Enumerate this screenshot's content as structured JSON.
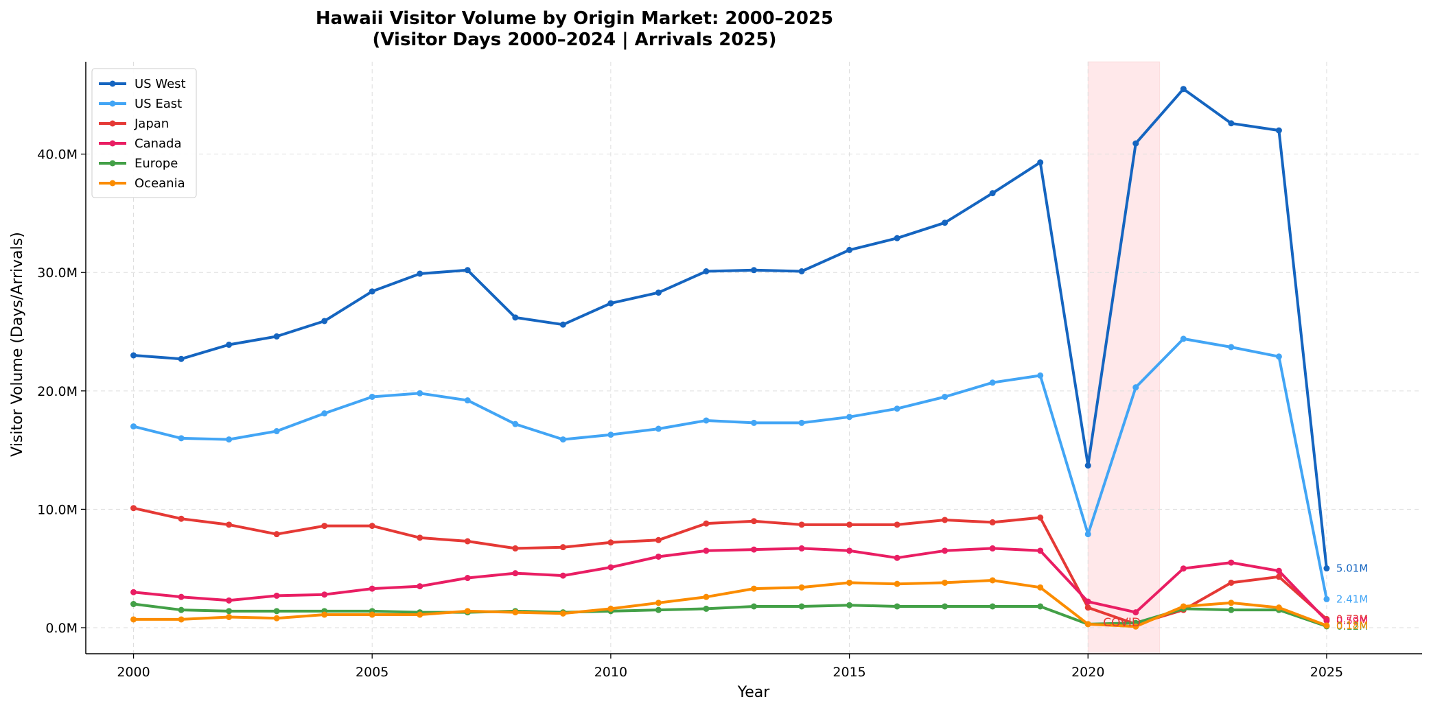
{
  "chart_data": {
    "type": "line",
    "title": "Hawaii Visitor Volume by Origin Market: 2000–2025",
    "subtitle": "(Visitor Days 2000–2024 | Arrivals 2025)",
    "xlabel": "Year",
    "ylabel": "Visitor Volume (Days/Arrivals)",
    "xlim": [
      1999,
      2027
    ],
    "ylim": [
      -2200000,
      47800000
    ],
    "x_ticks": [
      2000,
      2005,
      2010,
      2015,
      2020,
      2025
    ],
    "x_tick_labels": [
      "2000",
      "2005",
      "2010",
      "2015",
      "2020",
      "2025"
    ],
    "y_ticks": [
      0,
      10000000,
      20000000,
      30000000,
      40000000
    ],
    "y_tick_labels": [
      "0.0M",
      "10.0M",
      "20.0M",
      "30.0M",
      "40.0M"
    ],
    "grid": true,
    "legend_position": "top-left",
    "x": [
      2000,
      2001,
      2002,
      2003,
      2004,
      2005,
      2006,
      2007,
      2008,
      2009,
      2010,
      2011,
      2012,
      2013,
      2014,
      2015,
      2016,
      2017,
      2018,
      2019,
      2020,
      2021,
      2022,
      2023,
      2024,
      2025
    ],
    "series": [
      {
        "name": "US West",
        "color": "#1565c0",
        "values": [
          23000000,
          22700000,
          23900000,
          24600000,
          25900000,
          28400000,
          29900000,
          30200000,
          26200000,
          25600000,
          27400000,
          28300000,
          30100000,
          30200000,
          30100000,
          31900000,
          32900000,
          34200000,
          36700000,
          39300000,
          13700000,
          40900000,
          45500000,
          42600000,
          42000000,
          5010000
        ],
        "end_label": "5.01M"
      },
      {
        "name": "US East",
        "color": "#42a5f5",
        "values": [
          17000000,
          16000000,
          15900000,
          16600000,
          18100000,
          19500000,
          19800000,
          19200000,
          17200000,
          15900000,
          16300000,
          16800000,
          17500000,
          17300000,
          17300000,
          17800000,
          18500000,
          19500000,
          20700000,
          21300000,
          7900000,
          20300000,
          24400000,
          23700000,
          22900000,
          2410000
        ],
        "end_label": "2.41M"
      },
      {
        "name": "Japan",
        "color": "#e53935",
        "values": [
          10100000,
          9200000,
          8700000,
          7900000,
          8600000,
          8600000,
          7600000,
          7300000,
          6700000,
          6800000,
          7200000,
          7400000,
          8800000,
          9000000,
          8700000,
          8700000,
          8700000,
          9100000,
          8900000,
          9300000,
          1700000,
          300000,
          1500000,
          3800000,
          4300000,
          730000
        ],
        "end_label": "0.73M"
      },
      {
        "name": "Canada",
        "color": "#e91e63",
        "values": [
          3000000,
          2600000,
          2300000,
          2700000,
          2800000,
          3300000,
          3500000,
          4200000,
          4600000,
          4400000,
          5100000,
          6000000,
          6500000,
          6600000,
          6700000,
          6500000,
          5900000,
          6500000,
          6700000,
          6500000,
          2200000,
          1300000,
          5000000,
          5500000,
          4800000,
          590000
        ],
        "end_label": "0.59M"
      },
      {
        "name": "Europe",
        "color": "#43a047",
        "values": [
          2000000,
          1500000,
          1400000,
          1400000,
          1400000,
          1400000,
          1300000,
          1300000,
          1400000,
          1300000,
          1400000,
          1500000,
          1600000,
          1800000,
          1800000,
          1900000,
          1800000,
          1800000,
          1800000,
          1800000,
          300000,
          400000,
          1600000,
          1500000,
          1500000,
          120000
        ],
        "end_label": "0.12M"
      },
      {
        "name": "Oceania",
        "color": "#fb8c00",
        "values": [
          700000,
          700000,
          900000,
          800000,
          1100000,
          1100000,
          1100000,
          1400000,
          1300000,
          1200000,
          1600000,
          2100000,
          2600000,
          3300000,
          3400000,
          3800000,
          3700000,
          3800000,
          4000000,
          3400000,
          300000,
          100000,
          1800000,
          2100000,
          1700000,
          180000
        ],
        "end_label": "0.18M"
      }
    ],
    "annotations": [
      {
        "text": "COVID",
        "x_start": 2020,
        "x_end": 2021.5,
        "color": "#e53935",
        "shade_color": "#ffcdd2"
      }
    ]
  }
}
